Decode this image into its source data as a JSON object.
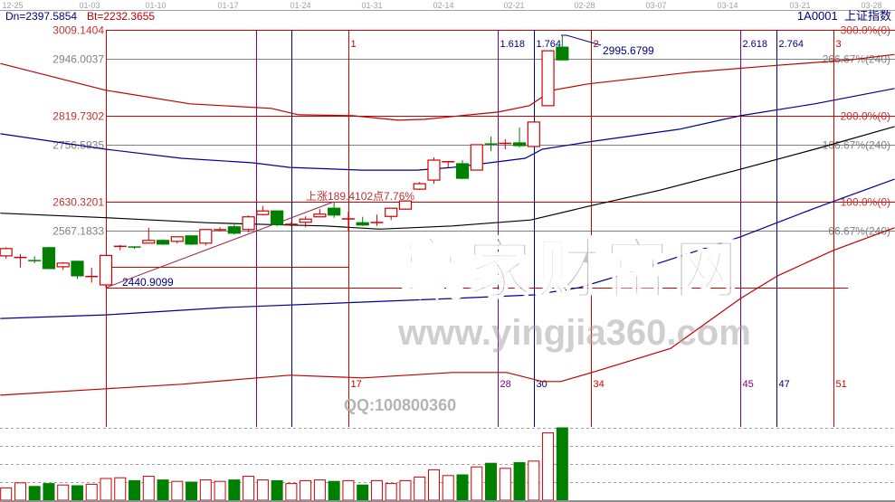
{
  "header": {
    "dn": "Dn=2397.5854",
    "bt": "Bt=2232.3655",
    "symbol": "1A0001",
    "name": "上证指数"
  },
  "watermark": {
    "brand": "赢家财富网",
    "url": "www.yingjia360.com",
    "qq": "QQ:100800360"
  },
  "colors": {
    "up": "#d00000",
    "down": "#008000",
    "fib_red": "#d00000",
    "fib_purple": "#800080",
    "fib_navy": "#000080",
    "level_gray": "#808080",
    "band_red": "#c00000",
    "band_blue": "#000090",
    "band_black": "#000000"
  },
  "chart_data": {
    "type": "candlestick",
    "x_ticks": [
      "12-25",
      "01-03",
      "01-10",
      "01-17",
      "01-24",
      "01-31",
      "02-14",
      "02-21",
      "02-28",
      "03-07",
      "03-14",
      "03-21",
      "03-28"
    ],
    "candles": [
      [
        2511,
        2530,
        2505,
        2527
      ],
      [
        2507,
        2515,
        2485,
        2508
      ],
      [
        2501,
        2510,
        2495,
        2500
      ],
      [
        2529,
        2531,
        2482,
        2483
      ],
      [
        2487,
        2497,
        2480,
        2495
      ],
      [
        2499,
        2499,
        2460,
        2467
      ],
      [
        2465,
        2485,
        2452,
        2466
      ],
      [
        2447,
        2512,
        2441,
        2512
      ],
      [
        2531,
        2535,
        2523,
        2533
      ],
      [
        2532,
        2532,
        2526,
        2529
      ],
      [
        2539,
        2573,
        2539,
        2545
      ],
      [
        2545,
        2547,
        2535,
        2537
      ],
      [
        2543,
        2553,
        2538,
        2553
      ],
      [
        2555,
        2556,
        2535,
        2537
      ],
      [
        2539,
        2570,
        2534,
        2569
      ],
      [
        2568,
        2574,
        2566,
        2569
      ],
      [
        2575,
        2580,
        2558,
        2561
      ],
      [
        2569,
        2600,
        2563,
        2597
      ],
      [
        2602,
        2621,
        2600,
        2610
      ],
      [
        2610,
        2610,
        2576,
        2580
      ],
      [
        2580,
        2586,
        2576,
        2581
      ],
      [
        2585,
        2598,
        2574,
        2592
      ],
      [
        2597,
        2614,
        2596,
        2603
      ],
      [
        2616,
        2630,
        2595,
        2601
      ],
      [
        2592,
        2608,
        2566,
        2593
      ],
      [
        2584,
        2597,
        2577,
        2579
      ],
      [
        2584,
        2602,
        2577,
        2585
      ],
      [
        2598,
        2616,
        2590,
        2616
      ],
      [
        2614,
        2634,
        2613,
        2632
      ],
      [
        2658,
        2674,
        2656,
        2670
      ],
      [
        2678,
        2728,
        2670,
        2722
      ],
      [
        2718,
        2720,
        2706,
        2719
      ],
      [
        2714,
        2722,
        2680,
        2682
      ],
      [
        2700,
        2756,
        2700,
        2756
      ],
      [
        2758,
        2774,
        2742,
        2757
      ],
      [
        2758,
        2768,
        2746,
        2760
      ],
      [
        2760,
        2794,
        2750,
        2754
      ],
      [
        2752,
        2806,
        2752,
        2806
      ],
      [
        2842,
        2963,
        2842,
        2963
      ],
      [
        2971,
        2996,
        2943,
        2943
      ]
    ],
    "volume_pct_of_max": [
      17,
      24,
      19,
      23,
      21,
      20,
      22,
      30,
      31,
      27,
      33,
      28,
      26,
      25,
      28,
      26,
      28,
      33,
      28,
      27,
      23,
      27,
      28,
      26,
      27,
      21,
      27,
      23,
      27,
      32,
      42,
      34,
      35,
      46,
      51,
      44,
      52,
      54,
      93,
      100
    ],
    "price_levels": [
      {
        "price": 3009.1404,
        "label": "3009.1404",
        "right": "300.0%(0)",
        "kind": "red"
      },
      {
        "price": 2946.0037,
        "label": "2946.0037",
        "right": "266.67%(240)",
        "kind": "gray"
      },
      {
        "price": 2819.7302,
        "label": "2819.7302",
        "right": "200.0%(0)",
        "kind": "red"
      },
      {
        "price": 2756.5935,
        "label": "2756.5935",
        "right": "166.67%(240)",
        "kind": "gray"
      },
      {
        "price": 2630.3201,
        "label": "2630.3201",
        "right": "100.0%(0)",
        "kind": "red"
      },
      {
        "price": 2567.1833,
        "label": "2567.1833",
        "right": "66.67%(240)",
        "kind": "gray"
      },
      {
        "price": 2440.9099,
        "label": "",
        "right": "",
        "kind": "red"
      }
    ],
    "extra_segment": {
      "price": 2487,
      "from_bar": 8,
      "to_bar": 25
    },
    "bands": [
      {
        "kind": "red",
        "points": [
          [
            0.6,
            2935
          ],
          [
            8,
            2876
          ],
          [
            13.9,
            2846
          ],
          [
            19.6,
            2836
          ],
          [
            21.5,
            2822
          ],
          [
            25.3,
            2820
          ],
          [
            28.5,
            2810
          ],
          [
            30.4,
            2812
          ],
          [
            32.9,
            2820
          ],
          [
            35.5,
            2828
          ],
          [
            37.7,
            2842
          ],
          [
            39.3,
            2876
          ],
          [
            41.8,
            2890
          ],
          [
            48.8,
            2915
          ],
          [
            55.1,
            2931
          ],
          [
            60.2,
            2943
          ],
          [
            63.3,
            2955
          ]
        ]
      },
      {
        "kind": "blue",
        "points": [
          [
            0.6,
            2780
          ],
          [
            8,
            2746
          ],
          [
            13.3,
            2726
          ],
          [
            18.3,
            2716
          ],
          [
            20.9,
            2706
          ],
          [
            26,
            2700
          ],
          [
            29.8,
            2700
          ],
          [
            32.3,
            2706
          ],
          [
            37.4,
            2726
          ],
          [
            38.6,
            2746
          ],
          [
            41.8,
            2762
          ],
          [
            48.2,
            2790
          ],
          [
            52.5,
            2820
          ],
          [
            57.7,
            2846
          ],
          [
            63.3,
            2880
          ]
        ]
      },
      {
        "kind": "black",
        "points": [
          [
            0.6,
            2605
          ],
          [
            8,
            2595
          ],
          [
            15.2,
            2584
          ],
          [
            19.6,
            2580
          ],
          [
            23.4,
            2577
          ],
          [
            27.2,
            2570
          ],
          [
            32.3,
            2577
          ],
          [
            37.8,
            2590
          ],
          [
            41.8,
            2620
          ],
          [
            46.9,
            2656
          ],
          [
            52.5,
            2702
          ],
          [
            57.7,
            2746
          ],
          [
            63.3,
            2796
          ]
        ]
      },
      {
        "kind": "blue",
        "points": [
          [
            0.6,
            2373
          ],
          [
            8,
            2381
          ],
          [
            16.4,
            2397
          ],
          [
            26,
            2409
          ],
          [
            32.3,
            2417
          ],
          [
            38,
            2425
          ],
          [
            41.2,
            2441
          ],
          [
            45,
            2477
          ],
          [
            52.5,
            2553
          ],
          [
            57.7,
            2616
          ],
          [
            63.3,
            2680
          ]
        ]
      },
      {
        "kind": "red",
        "points": [
          [
            0.6,
            2204
          ],
          [
            8,
            2218
          ],
          [
            13.3,
            2228
          ],
          [
            20.9,
            2248
          ],
          [
            26,
            2242
          ],
          [
            32.3,
            2254
          ],
          [
            36.1,
            2254
          ],
          [
            38.6,
            2234
          ],
          [
            39.9,
            2234
          ],
          [
            42.5,
            2258
          ],
          [
            47.6,
            2307
          ],
          [
            52.5,
            2417
          ],
          [
            55.1,
            2467
          ],
          [
            59,
            2523
          ],
          [
            63.3,
            2573
          ]
        ]
      }
    ],
    "time_lines": {
      "start_bar": 8,
      "unit_bars": 17,
      "lines": [
        {
          "ratio": 0,
          "kind": "red",
          "top": "",
          "bottom": ""
        },
        {
          "ratio": 0.618,
          "kind": "purple",
          "top": "",
          "bottom": ""
        },
        {
          "ratio": 0.764,
          "kind": "navy",
          "top": "",
          "bottom": ""
        },
        {
          "ratio": 1,
          "kind": "red",
          "top": "1",
          "bottom": "17"
        },
        {
          "ratio": 1.618,
          "kind": "purple",
          "top": "1.618",
          "bottom": "28"
        },
        {
          "ratio": 1.764,
          "kind": "navy",
          "top": "1.764",
          "bottom": "30"
        },
        {
          "ratio": 2,
          "kind": "red",
          "top": "2",
          "bottom": "34"
        },
        {
          "ratio": 2.618,
          "kind": "purple",
          "top": "2.618",
          "bottom": "45"
        },
        {
          "ratio": 2.764,
          "kind": "navy",
          "top": "2.764",
          "bottom": "47"
        },
        {
          "ratio": 3,
          "kind": "red",
          "top": "3",
          "bottom": "51"
        }
      ]
    },
    "trend": {
      "from": [
        8,
        2440.9099
      ],
      "to": [
        24,
        2630.3201
      ],
      "label": "上涨189.4102点7.76%"
    },
    "annotations": {
      "low": "2440.9099",
      "high": "2995.6799"
    }
  }
}
